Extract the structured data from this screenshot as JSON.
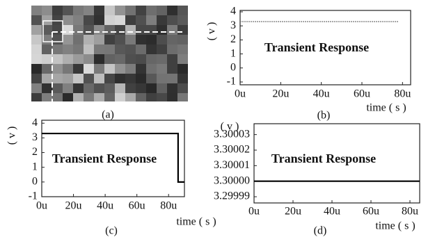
{
  "image": {
    "caption": "(a)"
  },
  "chart_data": [
    {
      "type": "line",
      "annotation": "Transient Response",
      "x_label": "time ( s )",
      "y_label": "( v )",
      "caption": "(b)",
      "x": [
        0,
        78
      ],
      "values": [
        3.3,
        3.3
      ],
      "color": "#8a8a8a",
      "xlim": [
        0,
        84
      ],
      "ylim": [
        -1.2,
        4.1
      ],
      "xticks": [
        {
          "value": 0,
          "label": "0u"
        },
        {
          "value": 20,
          "label": "20u"
        },
        {
          "value": 40,
          "label": "40u"
        },
        {
          "value": 60,
          "label": "60u"
        },
        {
          "value": 80,
          "label": "80u"
        }
      ],
      "yticks": [
        -1,
        0,
        1,
        2,
        3,
        4
      ]
    },
    {
      "type": "line",
      "annotation": "Transient Response",
      "x_label": "time ( s )",
      "y_label": "( v )",
      "caption": "(c)",
      "x": [
        0,
        86,
        86,
        90
      ],
      "values": [
        3.3,
        3.3,
        0,
        0
      ],
      "color": "#000000",
      "xlim": [
        0,
        90
      ],
      "ylim": [
        -1,
        4.2
      ],
      "xticks": [
        {
          "value": 0,
          "label": "0u"
        },
        {
          "value": 20,
          "label": "20u"
        },
        {
          "value": 40,
          "label": "40u"
        },
        {
          "value": 60,
          "label": "60u"
        },
        {
          "value": 80,
          "label": "80u"
        }
      ],
      "yticks": [
        -1,
        0,
        1,
        2,
        3,
        4
      ]
    },
    {
      "type": "line",
      "annotation": "Transient Response",
      "x_label": "time ( s )",
      "y_label": "( v )",
      "caption": "(d)",
      "x": [
        0,
        85
      ],
      "values": [
        3.3,
        3.3
      ],
      "color": "#000000",
      "xlim": [
        0,
        85
      ],
      "ylim": [
        3.299986,
        3.300037
      ],
      "xticks": [
        {
          "value": 0,
          "label": "0u"
        },
        {
          "value": 20,
          "label": "20u"
        },
        {
          "value": 40,
          "label": "40u"
        },
        {
          "value": 60,
          "label": "60u"
        },
        {
          "value": 80,
          "label": "80u"
        }
      ],
      "yticks": [
        3.29999,
        {
          "value": 3.3,
          "label": "3.30000"
        },
        3.30001,
        3.30002,
        3.30003
      ]
    }
  ]
}
